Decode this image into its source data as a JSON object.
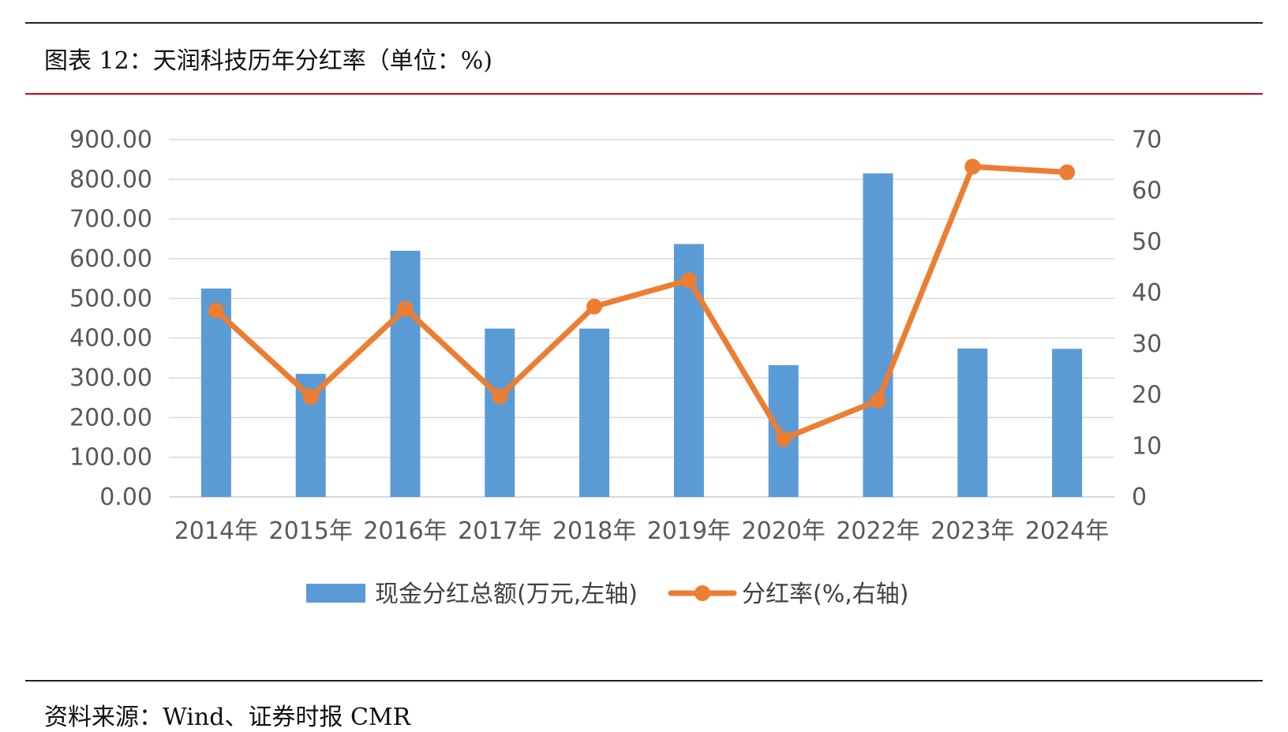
{
  "header": {
    "title": "图表 12：天润科技历年分红率（单位：%)"
  },
  "footer": {
    "source": "资料来源：Wind、证券时报 CMR"
  },
  "colors": {
    "bar": "#5b9bd5",
    "line": "#ed7d31",
    "grid": "#d9d9d9",
    "rule_red": "#d0021b"
  },
  "chart_data": {
    "type": "bar",
    "categories": [
      "2014年",
      "2015年",
      "2016年",
      "2017年",
      "2018年",
      "2019年",
      "2020年",
      "2022年",
      "2023年",
      "2024年"
    ],
    "series": [
      {
        "name": "现金分红总额(万元,左轴)",
        "type": "bar",
        "axis": "left",
        "values": [
          525,
          310,
          620,
          424,
          424,
          637,
          332,
          815,
          374,
          373
        ]
      },
      {
        "name": "分红率(%,右轴)",
        "type": "line",
        "axis": "right",
        "values": [
          36.5,
          19.6,
          36.9,
          19.7,
          37.3,
          42.5,
          11.4,
          18.9,
          64.7,
          63.6
        ]
      }
    ],
    "left_axis": {
      "ylim": [
        0,
        900
      ],
      "ticks": [
        "0.00",
        "100.00",
        "200.00",
        "300.00",
        "400.00",
        "500.00",
        "600.00",
        "700.00",
        "800.00",
        "900.00"
      ]
    },
    "right_axis": {
      "ylim": [
        0,
        70
      ],
      "ticks": [
        "0",
        "10",
        "20",
        "30",
        "40",
        "50",
        "60",
        "70"
      ]
    },
    "grid": true,
    "legend_position": "bottom"
  }
}
